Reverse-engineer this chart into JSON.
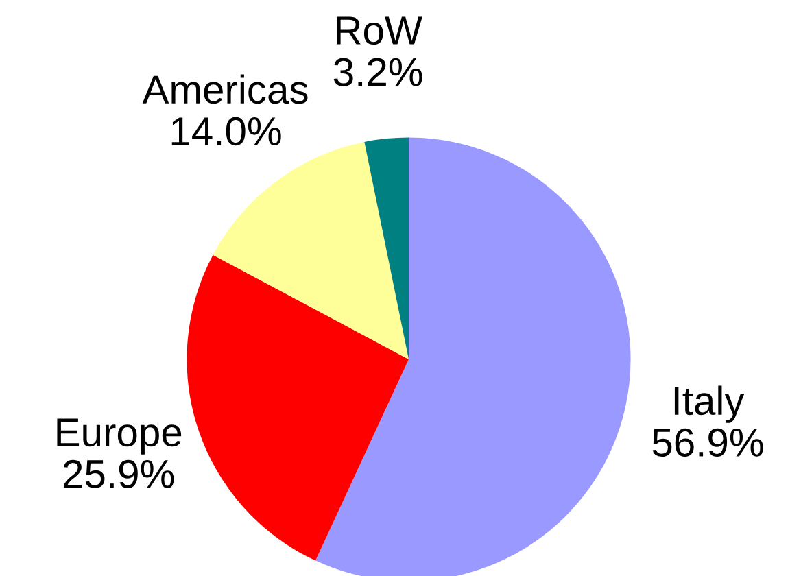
{
  "chart_data": {
    "type": "pie",
    "categories": [
      "Italy",
      "Europe",
      "Americas",
      "RoW"
    ],
    "values": [
      56.9,
      25.9,
      14.0,
      3.2
    ],
    "value_labels": [
      "56.9%",
      "25.9%",
      "14.0%",
      "3.2%"
    ],
    "colors": [
      "#9999ff",
      "#ff0000",
      "#ffff99",
      "#008080"
    ]
  }
}
